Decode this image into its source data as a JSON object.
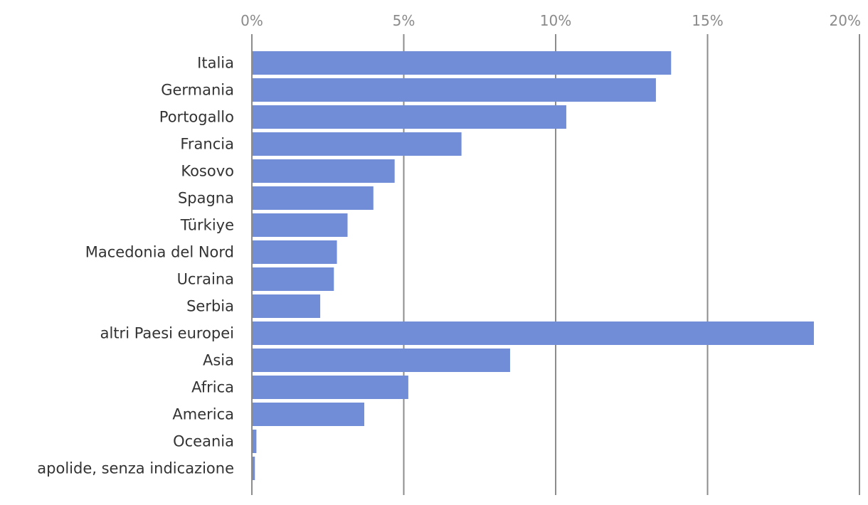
{
  "chart_data": {
    "type": "bar",
    "orientation": "horizontal",
    "categories": [
      "Italia",
      "Germania",
      "Portogallo",
      "Francia",
      "Kosovo",
      "Spagna",
      "Türkiye",
      "Macedonia del Nord",
      "Ucraina",
      "Serbia",
      "altri Paesi europei",
      "Asia",
      "Africa",
      "America",
      "Oceania",
      "apolide, senza indicazione"
    ],
    "values": [
      13.8,
      13.3,
      10.35,
      6.9,
      4.7,
      4.0,
      3.15,
      2.8,
      2.7,
      2.25,
      18.5,
      8.5,
      5.15,
      3.7,
      0.15,
      0.1
    ],
    "unit": "%",
    "xlim": [
      0,
      20
    ],
    "xticks": [
      0,
      5,
      10,
      15,
      20
    ],
    "xtick_labels": [
      "0%",
      "5%",
      "10%",
      "15%",
      "20%"
    ],
    "axis_position": "top",
    "grid": true,
    "legend": "none",
    "colors": {
      "bar": "#728dd8",
      "grid": "#8c8c8c",
      "tick_text": "#8a8a8a",
      "category_text": "#333333"
    }
  }
}
